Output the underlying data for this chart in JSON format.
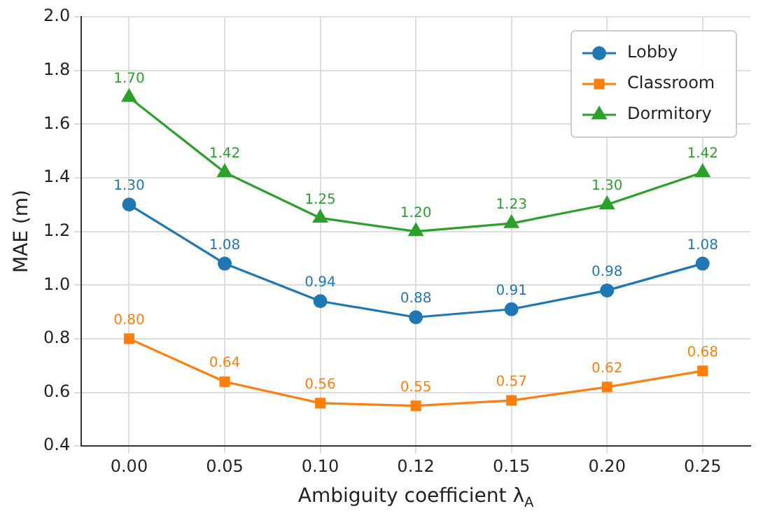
{
  "chart_data": {
    "type": "line",
    "xlabel": "Ambiguity coefficient λ$_{A}$",
    "ylabel": "MAE (m)",
    "categories": [
      "0.00",
      "0.05",
      "0.10",
      "0.12",
      "0.15",
      "0.20",
      "0.25"
    ],
    "ylim": [
      0.4,
      2.0
    ],
    "yticks": [
      0.4,
      0.6,
      0.8,
      {
        "value": 1.0,
        "label": "1.0"
      },
      1.2,
      1.4,
      1.6,
      1.8,
      {
        "value": 2.0,
        "label": "2.0"
      }
    ],
    "grid": true,
    "legend": "top right",
    "line_style": "solid",
    "series": [
      {
        "name": "Lobby",
        "color": "#1f77b4",
        "marker": "circle",
        "values": [
          1.3,
          1.08,
          0.94,
          0.88,
          0.91,
          0.98,
          1.08
        ],
        "value_labels": [
          "1.30",
          "1.08",
          "0.94",
          "0.88",
          "0.91",
          "0.98",
          "1.08"
        ]
      },
      {
        "name": "Classroom",
        "color": "#ff7f0e",
        "marker": "square",
        "values": [
          0.8,
          0.64,
          0.56,
          0.55,
          0.57,
          0.62,
          0.68
        ],
        "value_labels": [
          "0.80",
          "0.64",
          "0.56",
          "0.55",
          "0.57",
          "0.62",
          "0.68"
        ]
      },
      {
        "name": "Dormitory",
        "color": "#2ca02c",
        "marker": "triangle",
        "values": [
          1.7,
          1.42,
          1.25,
          1.2,
          1.23,
          1.3,
          1.42
        ],
        "value_labels": [
          "1.70",
          "1.42",
          "1.25",
          "1.20",
          "1.23",
          "1.30",
          "1.42"
        ]
      }
    ]
  }
}
